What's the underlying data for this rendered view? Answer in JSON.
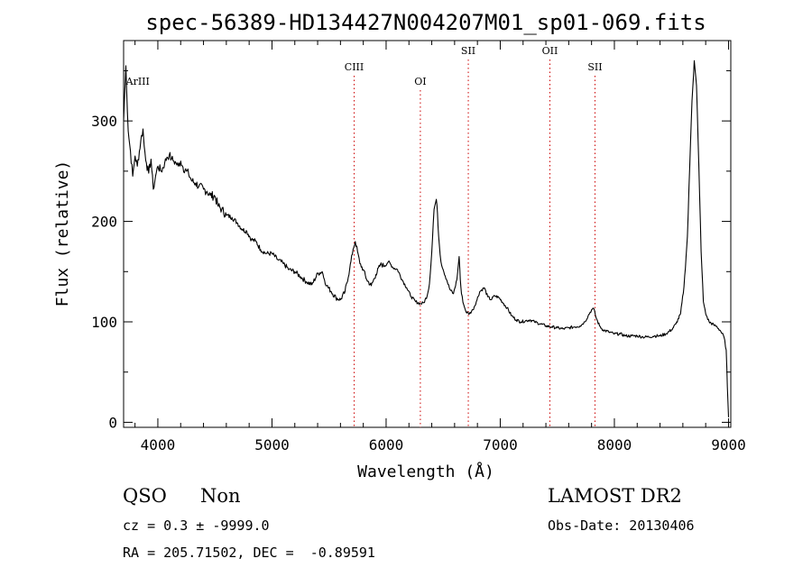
{
  "chart_data": {
    "type": "line",
    "title": "spec-56389-HD134427N004207M01_sp01-069.fits",
    "xlabel": "Wavelength (Å)",
    "ylabel": "Flux (relative)",
    "xlim": [
      3700,
      9020
    ],
    "ylim": [
      -5,
      380
    ],
    "xticks": [
      4000,
      5000,
      6000,
      7000,
      8000,
      9000
    ],
    "yticks": [
      0,
      100,
      200,
      300
    ],
    "grid": false,
    "series": [
      {
        "color": "#000000",
        "x": [
          3700,
          3720,
          3740,
          3760,
          3780,
          3800,
          3820,
          3850,
          3870,
          3880,
          3900,
          3920,
          3940,
          3960,
          3980,
          4000,
          4030,
          4060,
          4080,
          4100,
          4120,
          4140,
          4160,
          4180,
          4200,
          4220,
          4250,
          4270,
          4300,
          4330,
          4360,
          4400,
          4430,
          4460,
          4500,
          4530,
          4560,
          4600,
          4650,
          4700,
          4740,
          4780,
          4820,
          4860,
          4900,
          4950,
          5000,
          5050,
          5100,
          5150,
          5200,
          5250,
          5300,
          5350,
          5400,
          5440,
          5460,
          5480,
          5520,
          5560,
          5600,
          5640,
          5680,
          5710,
          5730,
          5750,
          5770,
          5800,
          5830,
          5870,
          5910,
          5950,
          5990,
          6020,
          6060,
          6100,
          6140,
          6180,
          6220,
          6260,
          6300,
          6330,
          6360,
          6380,
          6400,
          6420,
          6440,
          6450,
          6460,
          6480,
          6500,
          6530,
          6560,
          6590,
          6620,
          6640,
          6650,
          6660,
          6680,
          6700,
          6730,
          6760,
          6790,
          6820,
          6860,
          6890,
          6920,
          6950,
          6990,
          7030,
          7060,
          7100,
          7140,
          7180,
          7220,
          7260,
          7300,
          7350,
          7400,
          7450,
          7500,
          7550,
          7600,
          7650,
          7700,
          7740,
          7770,
          7800,
          7820,
          7840,
          7870,
          7900,
          7950,
          8000,
          8050,
          8100,
          8150,
          8200,
          8250,
          8300,
          8350,
          8400,
          8450,
          8500,
          8540,
          8580,
          8610,
          8640,
          8660,
          8680,
          8700,
          8720,
          8740,
          8760,
          8780,
          8800,
          8830,
          8870,
          8900,
          8930,
          8960,
          8980,
          8990,
          9000
        ],
        "y": [
          300,
          355,
          290,
          270,
          245,
          265,
          255,
          280,
          292,
          275,
          258,
          248,
          262,
          232,
          245,
          255,
          250,
          258,
          264,
          266,
          262,
          260,
          258,
          255,
          260,
          254,
          250,
          247,
          240,
          238,
          235,
          232,
          230,
          226,
          225,
          215,
          212,
          206,
          204,
          198,
          192,
          190,
          182,
          180,
          172,
          168,
          168,
          162,
          158,
          152,
          150,
          145,
          140,
          137,
          148,
          150,
          142,
          136,
          130,
          124,
          122,
          130,
          152,
          172,
          180,
          170,
          158,
          152,
          142,
          136,
          147,
          157,
          156,
          160,
          154,
          152,
          142,
          134,
          125,
          120,
          118,
          119,
          126,
          138,
          170,
          212,
          222,
          208,
          185,
          160,
          152,
          142,
          132,
          128,
          142,
          165,
          142,
          128,
          117,
          110,
          108,
          112,
          120,
          130,
          134,
          125,
          122,
          126,
          124,
          118,
          114,
          106,
          102,
          100,
          101,
          102,
          100,
          98,
          96,
          95,
          94,
          93,
          94,
          95,
          96,
          100,
          106,
          112,
          113,
          104,
          96,
          92,
          90,
          88,
          88,
          86,
          86,
          86,
          85,
          85,
          86,
          86,
          88,
          92,
          98,
          108,
          135,
          185,
          255,
          320,
          360,
          335,
          255,
          170,
          120,
          108,
          100,
          97,
          95,
          91,
          85,
          72,
          35,
          5
        ]
      }
    ],
    "emission_lines": [
      {
        "label": "ArIII",
        "x": 3705
      },
      {
        "label": "CIII",
        "x": 5720
      },
      {
        "label": "OI",
        "x": 6300
      },
      {
        "label": "SII",
        "x": 6720
      },
      {
        "label": "OII",
        "x": 7435
      },
      {
        "label": "SII",
        "x": 7830
      }
    ],
    "line_color": "#cc0000"
  },
  "info": {
    "object_class": "QSO",
    "subclass": "Non",
    "redshift": "cz = 0.3 ± -9999.0",
    "coordinates": "RA = 205.71502, DEC =  -0.89591",
    "survey": "LAMOST DR2",
    "obs_date": "Obs-Date: 20130406"
  }
}
